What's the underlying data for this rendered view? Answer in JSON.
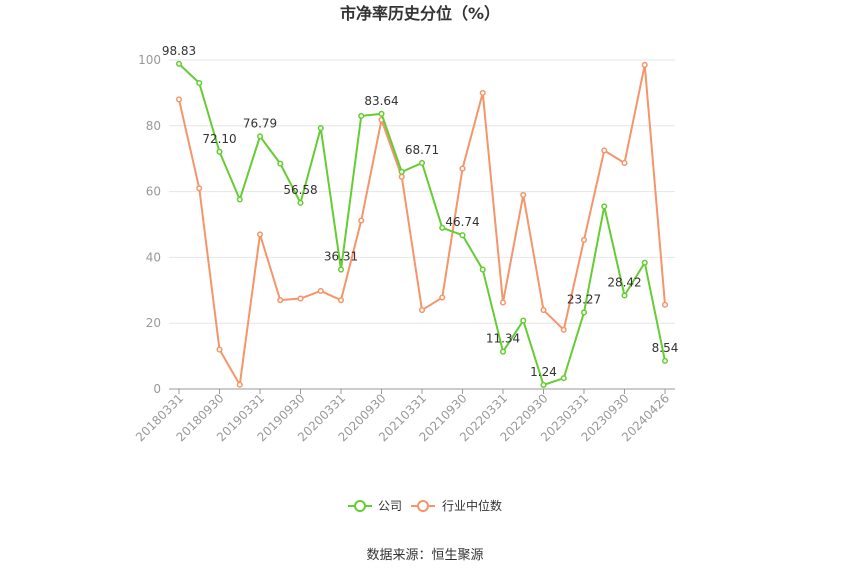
{
  "chart_data": {
    "type": "line",
    "title": "市净率历史分位（%）",
    "source": "数据来源：恒生聚源",
    "ylim": [
      0,
      100
    ],
    "yticks": [
      0,
      20,
      40,
      60,
      80,
      100
    ],
    "grid": true,
    "legend_position": "bottom-center",
    "x_labels_shown": [
      "20180331",
      "20180930",
      "20190331",
      "20190930",
      "20200331",
      "20200930",
      "20210331",
      "20210930",
      "20220331",
      "20220930",
      "20230331",
      "20230930",
      "20240426"
    ],
    "label_indices": [
      0,
      2,
      4,
      6,
      8,
      10,
      12,
      14,
      16,
      18,
      20,
      22,
      24
    ],
    "series": [
      {
        "name": "公司",
        "color": "#66cc33",
        "values": [
          98.83,
          93.0,
          72.1,
          57.6,
          76.79,
          68.5,
          56.58,
          79.3,
          36.31,
          83.0,
          83.64,
          66.0,
          68.71,
          49.0,
          46.74,
          36.3,
          11.34,
          20.8,
          1.24,
          3.3,
          23.27,
          55.5,
          28.42,
          38.4,
          8.54
        ],
        "value_labels": {
          "0": "98.83",
          "2": "72.10",
          "4": "76.79",
          "6": "56.58",
          "8": "36.31",
          "10": "83.64",
          "12": "68.71",
          "14": "46.74",
          "16": "11.34",
          "18": "1.24",
          "20": "23.27",
          "22": "28.42",
          "24": "8.54"
        }
      },
      {
        "name": "行业中位数",
        "color": "#f4956a",
        "values": [
          88.0,
          61.0,
          12.0,
          1.3,
          47.0,
          27.0,
          27.5,
          29.8,
          27.0,
          51.2,
          81.8,
          64.5,
          24.0,
          27.8,
          67.0,
          90.0,
          26.3,
          59.0,
          24.0,
          18.0,
          45.3,
          72.5,
          68.7,
          98.5,
          25.6
        ]
      }
    ]
  }
}
